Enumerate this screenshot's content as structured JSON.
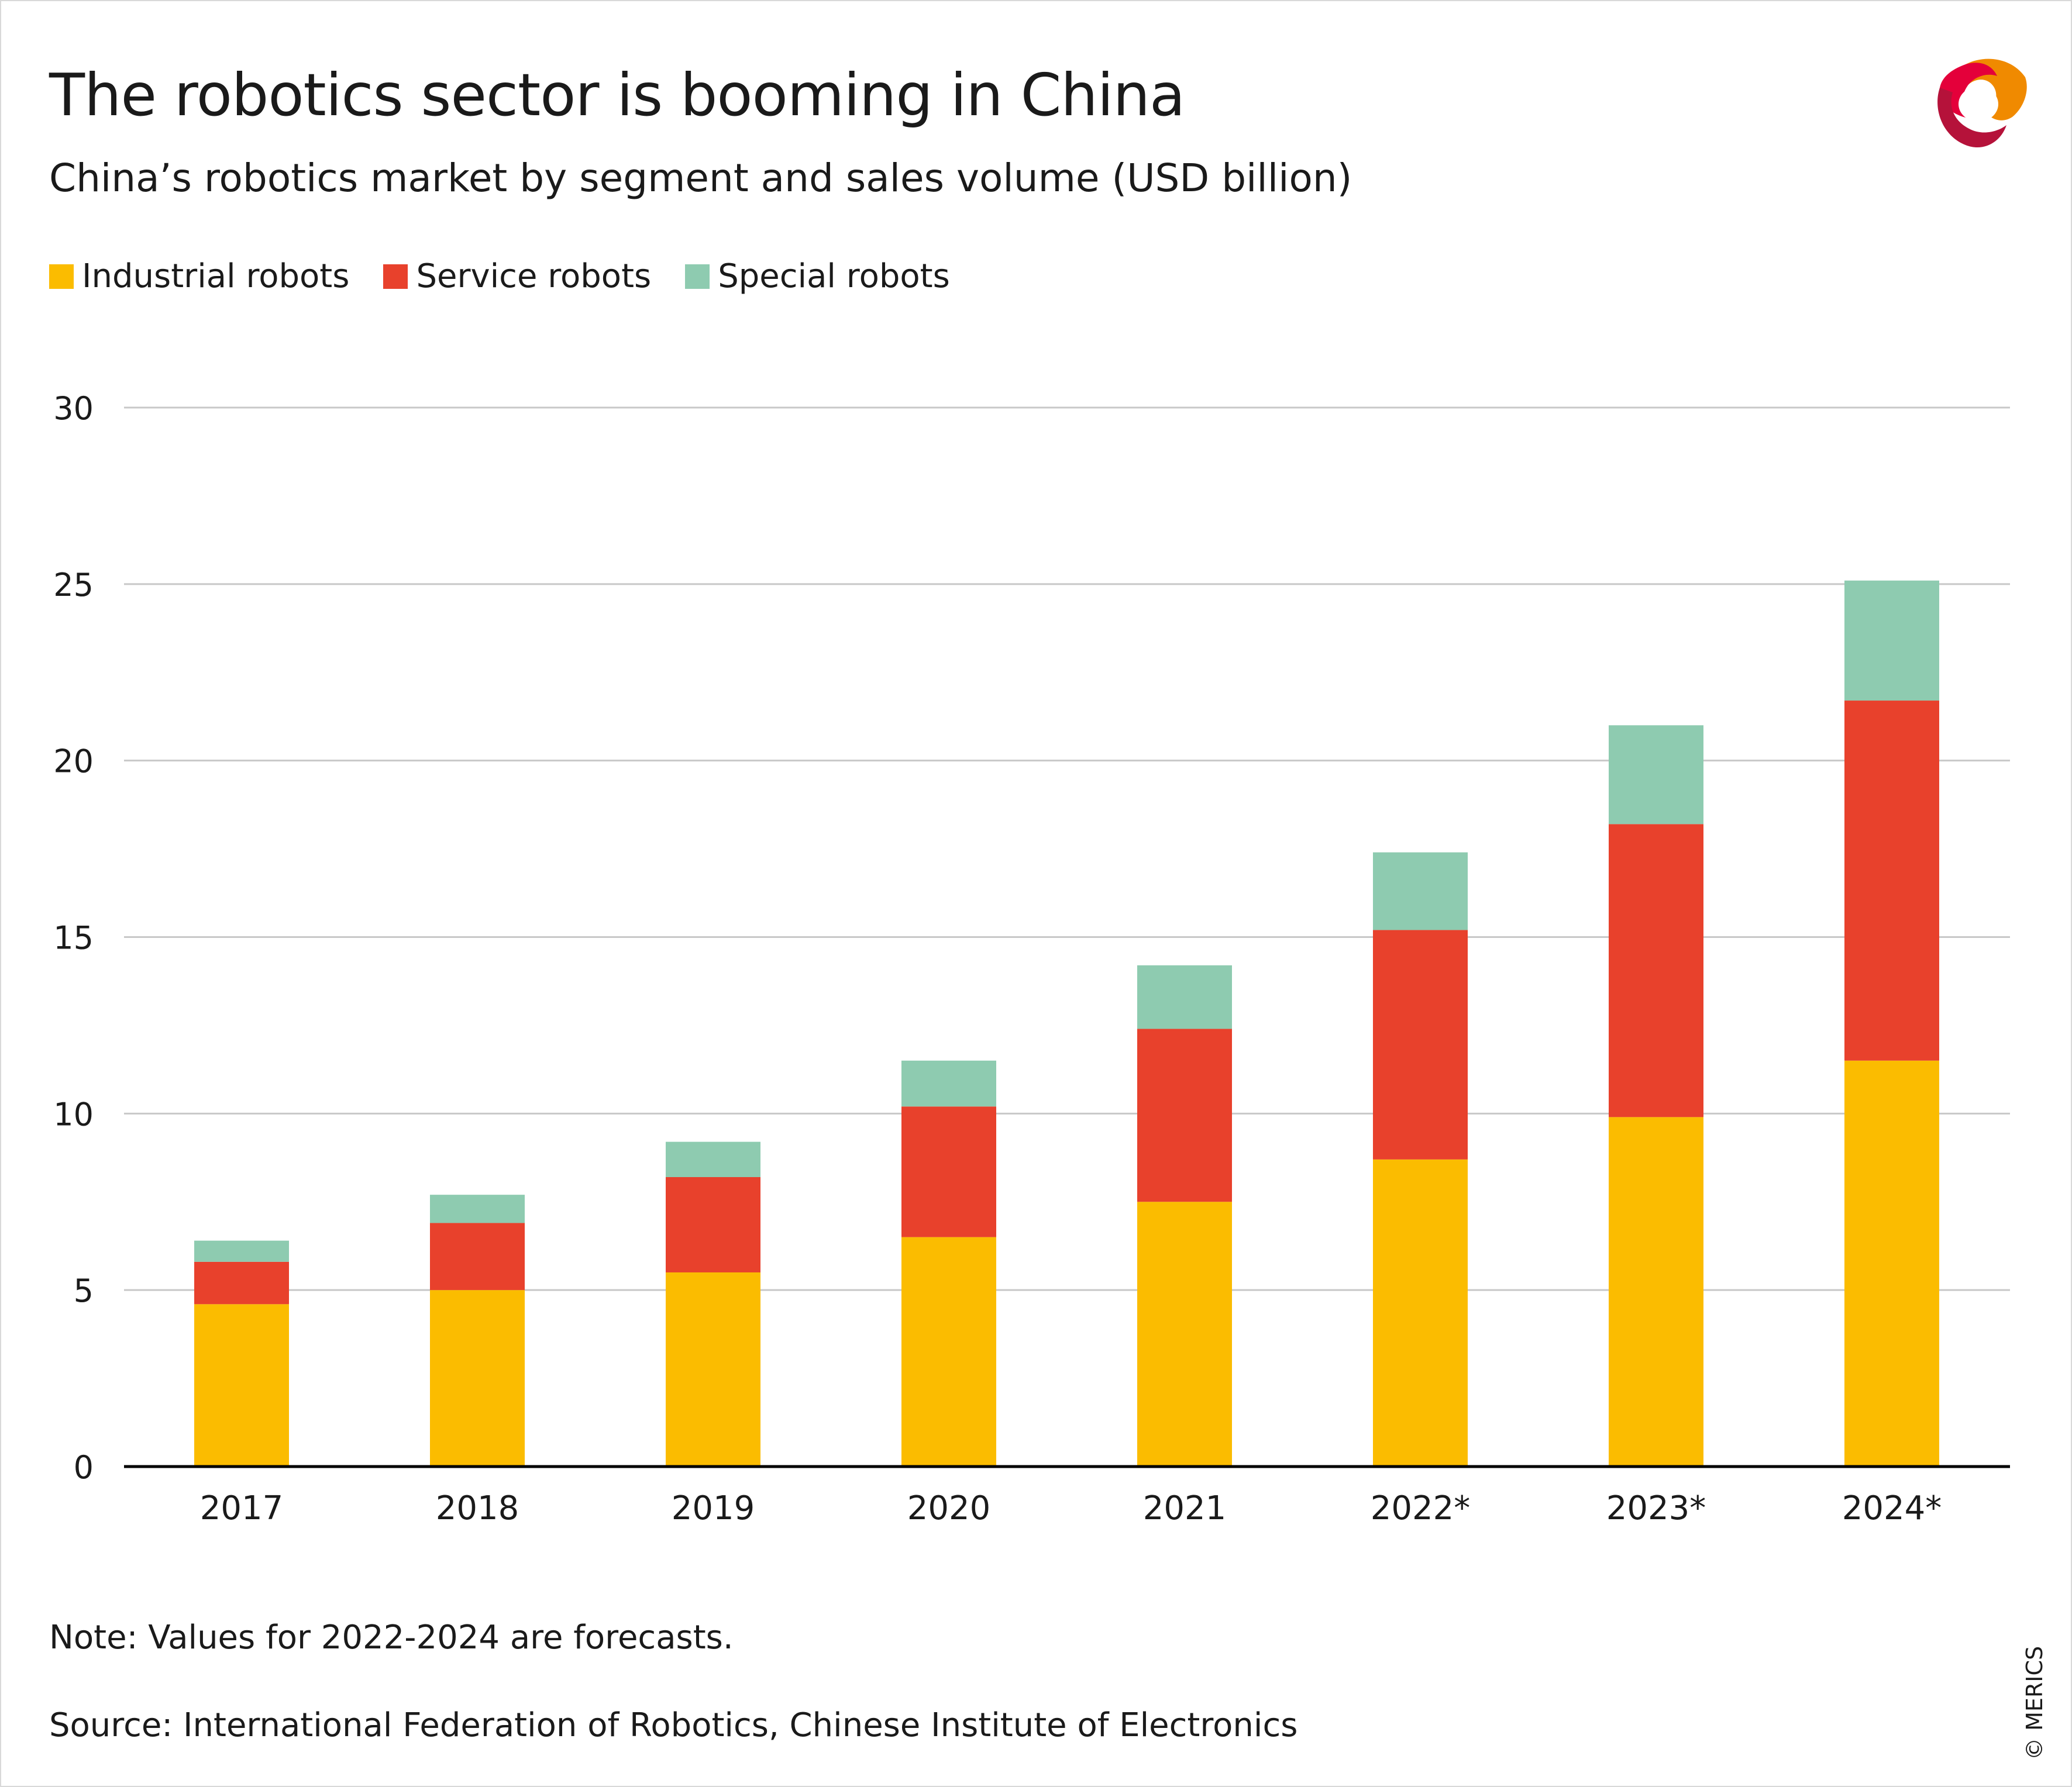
{
  "header": {
    "title": "The robotics sector is booming in China",
    "subtitle": "China’s robotics market by segment and sales volume (USD billion)"
  },
  "footer": {
    "note": "Note: Values for 2022-2024 are forecasts.",
    "source": "Source: International Federation of Robotics, Chinese Institute of Electronics",
    "copyright": "© MERICS"
  },
  "logo": {
    "icon": "merics-logo-icon",
    "colors": [
      "#e4003a",
      "#f08a00",
      "#b5123a"
    ]
  },
  "chart_data": {
    "type": "bar",
    "stacked": true,
    "title": "The robotics sector is booming in China",
    "subtitle": "China’s robotics market by segment and sales volume (USD billion)",
    "xlabel": "",
    "ylabel": "",
    "categories": [
      "2017",
      "2018",
      "2019",
      "2020",
      "2021",
      "2022*",
      "2023*",
      "2024*"
    ],
    "series": [
      {
        "name": "Industrial robots",
        "color": "#fbbc00",
        "values": [
          4.6,
          5.0,
          5.5,
          6.5,
          7.5,
          8.7,
          9.9,
          11.5
        ]
      },
      {
        "name": "Service robots",
        "color": "#e8412c",
        "values": [
          1.2,
          1.9,
          2.7,
          3.7,
          4.9,
          6.5,
          8.3,
          10.2
        ]
      },
      {
        "name": "Special robots",
        "color": "#8ecbb0",
        "values": [
          0.6,
          0.8,
          1.0,
          1.3,
          1.8,
          2.2,
          2.8,
          3.4
        ]
      }
    ],
    "ylim": [
      0,
      30
    ],
    "yticks": [
      0,
      5,
      10,
      15,
      20,
      25,
      30
    ],
    "grid": true,
    "legend_position": "top-left"
  }
}
